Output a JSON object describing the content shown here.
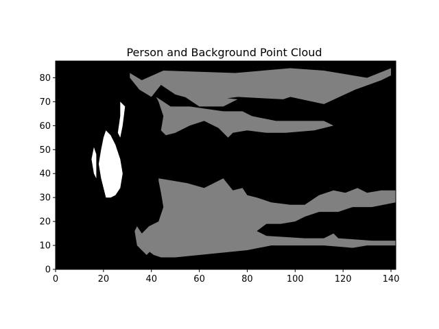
{
  "chart_data": {
    "type": "heatmap",
    "title": "Person and Background Point Cloud",
    "xlabel": "",
    "ylabel": "",
    "xlim": [
      0,
      142
    ],
    "ylim": [
      0,
      87
    ],
    "x_ticks": [
      0,
      20,
      40,
      60,
      80,
      100,
      120,
      140
    ],
    "y_ticks": [
      0,
      10,
      20,
      30,
      40,
      50,
      60,
      70,
      80
    ],
    "grid": false,
    "legend": "none",
    "value_levels": {
      "empty": 0,
      "background": 1,
      "person": 2
    },
    "level_colors": {
      "empty": "#000000",
      "background": "#808080",
      "person": "#ffffff"
    },
    "regions": [
      {
        "label": "background",
        "value": 1,
        "points": [
          [
            31,
            82
          ],
          [
            36,
            79
          ],
          [
            45,
            83
          ],
          [
            75,
            82
          ],
          [
            98,
            84
          ],
          [
            112,
            83
          ],
          [
            130,
            80
          ],
          [
            140,
            84
          ],
          [
            140,
            81
          ],
          [
            136,
            79
          ],
          [
            125,
            75
          ],
          [
            112,
            69
          ],
          [
            98,
            72
          ],
          [
            95,
            71
          ],
          [
            76,
            72
          ],
          [
            61,
            70
          ],
          [
            50,
            73
          ],
          [
            44,
            77
          ],
          [
            40,
            72
          ],
          [
            35,
            75
          ],
          [
            31,
            80
          ]
        ]
      },
      {
        "label": "background",
        "value": 1,
        "points": [
          [
            42,
            72
          ],
          [
            48,
            68
          ],
          [
            56,
            68
          ],
          [
            70,
            66
          ],
          [
            78,
            66
          ],
          [
            82,
            64
          ],
          [
            92,
            62
          ],
          [
            104,
            62
          ],
          [
            112,
            62
          ],
          [
            116,
            60
          ],
          [
            108,
            58
          ],
          [
            96,
            57
          ],
          [
            88,
            57
          ],
          [
            80,
            58
          ],
          [
            74,
            57
          ],
          [
            72,
            55
          ],
          [
            68,
            59
          ],
          [
            62,
            62
          ],
          [
            56,
            60
          ],
          [
            50,
            57
          ],
          [
            46,
            56
          ],
          [
            44,
            58
          ],
          [
            45,
            64
          ],
          [
            43,
            70
          ]
        ]
      },
      {
        "label": "background",
        "value": 1,
        "points": [
          [
            54,
            72
          ],
          [
            60,
            68
          ],
          [
            70,
            68
          ],
          [
            76,
            71
          ],
          [
            66,
            72
          ]
        ]
      },
      {
        "label": "background",
        "value": 1,
        "points": [
          [
            43,
            38
          ],
          [
            55,
            36
          ],
          [
            62,
            34
          ],
          [
            70,
            38
          ],
          [
            74,
            33
          ],
          [
            78,
            34
          ],
          [
            80,
            31
          ],
          [
            84,
            30
          ],
          [
            90,
            28
          ],
          [
            98,
            27
          ],
          [
            104,
            27
          ],
          [
            110,
            31
          ],
          [
            116,
            33
          ],
          [
            121,
            32
          ],
          [
            126,
            34
          ],
          [
            130,
            32
          ],
          [
            136,
            33
          ],
          [
            142,
            33
          ],
          [
            142,
            28
          ],
          [
            132,
            26
          ],
          [
            124,
            26
          ],
          [
            118,
            24
          ],
          [
            110,
            24
          ],
          [
            104,
            22
          ],
          [
            100,
            20
          ],
          [
            94,
            19
          ],
          [
            88,
            19
          ],
          [
            84,
            16
          ],
          [
            88,
            14
          ],
          [
            104,
            13
          ],
          [
            112,
            13
          ],
          [
            116,
            15
          ],
          [
            118,
            13
          ],
          [
            132,
            12
          ],
          [
            142,
            12
          ],
          [
            142,
            10
          ],
          [
            130,
            10
          ],
          [
            124,
            9
          ],
          [
            112,
            10
          ],
          [
            100,
            10
          ],
          [
            90,
            10
          ],
          [
            80,
            8
          ],
          [
            70,
            7
          ],
          [
            60,
            6
          ],
          [
            50,
            5
          ],
          [
            44,
            5
          ],
          [
            41,
            6
          ],
          [
            37,
            9
          ],
          [
            35,
            14
          ],
          [
            39,
            18
          ],
          [
            43,
            20
          ],
          [
            45,
            26
          ],
          [
            44,
            32
          ],
          [
            43,
            37
          ]
        ]
      },
      {
        "label": "background",
        "value": 1,
        "points": [
          [
            34,
            18
          ],
          [
            38,
            12
          ],
          [
            40,
            8
          ],
          [
            38,
            6
          ],
          [
            34,
            10
          ],
          [
            33,
            16
          ]
        ]
      },
      {
        "label": "person",
        "value": 2,
        "points": [
          [
            21,
            58
          ],
          [
            23,
            56
          ],
          [
            25,
            52
          ],
          [
            27,
            46
          ],
          [
            28,
            40
          ],
          [
            27,
            34
          ],
          [
            25,
            31
          ],
          [
            23,
            30
          ],
          [
            21,
            30
          ],
          [
            20,
            34
          ],
          [
            19,
            38
          ],
          [
            18,
            44
          ],
          [
            19,
            50
          ],
          [
            20,
            55
          ]
        ]
      },
      {
        "label": "person",
        "value": 2,
        "points": [
          [
            27,
            70
          ],
          [
            29,
            68
          ],
          [
            28,
            60
          ],
          [
            27,
            55
          ],
          [
            26,
            57
          ],
          [
            27,
            64
          ]
        ]
      },
      {
        "label": "person",
        "value": 2,
        "points": [
          [
            16,
            51
          ],
          [
            17,
            48
          ],
          [
            17,
            38
          ],
          [
            16,
            40
          ],
          [
            15,
            46
          ]
        ]
      }
    ]
  }
}
